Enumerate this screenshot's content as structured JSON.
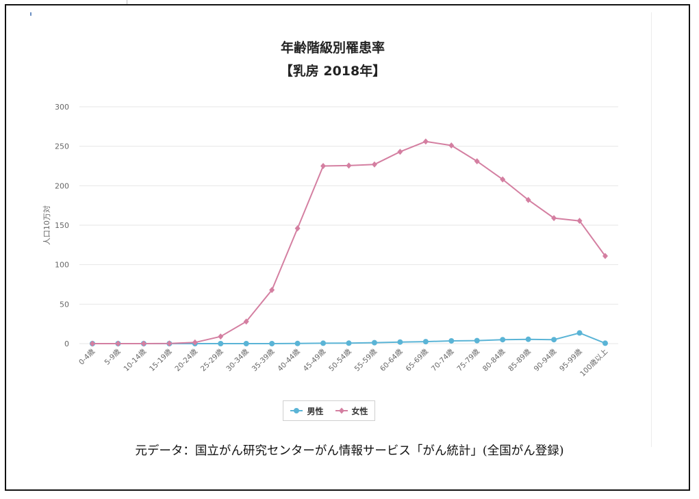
{
  "chart_data": {
    "type": "line",
    "title": "年齢階級別罹患率",
    "subtitle": "【乳房 2018年】",
    "ylabel": "人口10万対",
    "xlabel": "",
    "ylim": [
      0,
      300
    ],
    "yticks": [
      0,
      50,
      100,
      150,
      200,
      250,
      300
    ],
    "grid": true,
    "legend_position": "bottom",
    "categories": [
      "0-4歳",
      "5-9歳",
      "10-14歳",
      "15-19歳",
      "20-24歳",
      "25-29歳",
      "30-34歳",
      "35-39歳",
      "40-44歳",
      "45-49歳",
      "50-54歳",
      "55-59歳",
      "60-64歳",
      "65-69歳",
      "70-74歳",
      "75-79歳",
      "80-84歳",
      "85-89歳",
      "90-94歳",
      "95-99歳",
      "100歳以上"
    ],
    "series": [
      {
        "name": "男性",
        "color": "#5ab4d6",
        "marker": "circle",
        "values": [
          0,
          0,
          0,
          0,
          0,
          0,
          0,
          0,
          0.2,
          0.5,
          0.6,
          1.2,
          2,
          2.5,
          3.5,
          3.8,
          5,
          5.5,
          5,
          13.5,
          0.5
        ]
      },
      {
        "name": "女性",
        "color": "#d47fa1",
        "marker": "diamond",
        "values": [
          0,
          0,
          0,
          0.2,
          1.5,
          9,
          28,
          68,
          146,
          225,
          225.5,
          227,
          243,
          256,
          251,
          231,
          208,
          182,
          159,
          155.5,
          111
        ]
      }
    ]
  },
  "caption": "元データ：国立がん研究センターがん情報サービス「がん統計」(全国がん登録)",
  "colors": {
    "grid": "#e6e6e6",
    "axis_text": "#666666",
    "title": "#222222"
  }
}
